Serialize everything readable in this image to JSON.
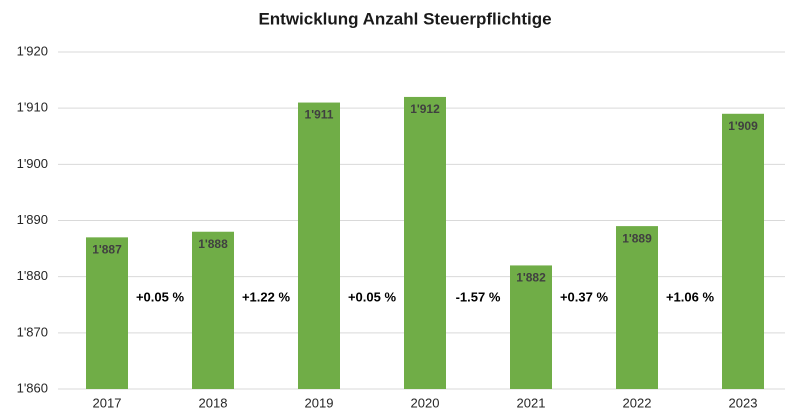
{
  "chart_data": {
    "type": "bar",
    "title": "Entwicklung Anzahl Steuerpflichtige",
    "categories": [
      "2017",
      "2018",
      "2019",
      "2020",
      "2021",
      "2022",
      "2023"
    ],
    "values": [
      1887,
      1888,
      1911,
      1912,
      1882,
      1889,
      1909
    ],
    "value_labels": [
      "1'887",
      "1'888",
      "1'911",
      "1'912",
      "1'882",
      "1'889",
      "1'909"
    ],
    "color": "#70ad47",
    "ylim": [
      1860,
      1920
    ],
    "yticks": [
      {
        "value": 1860,
        "label": "1'860"
      },
      {
        "value": 1870,
        "label": "1'870"
      },
      {
        "value": 1880,
        "label": "1'880"
      },
      {
        "value": 1890,
        "label": "1'890"
      },
      {
        "value": 1900,
        "label": "1'900"
      },
      {
        "value": 1910,
        "label": "1'910"
      },
      {
        "value": 1920,
        "label": "1'920"
      }
    ],
    "grid": true,
    "annotations": [
      "+0.05 %",
      "+1.22 %",
      "+0.05 %",
      "-1.57 %",
      "+0.37 %",
      "+1.06 %"
    ]
  }
}
